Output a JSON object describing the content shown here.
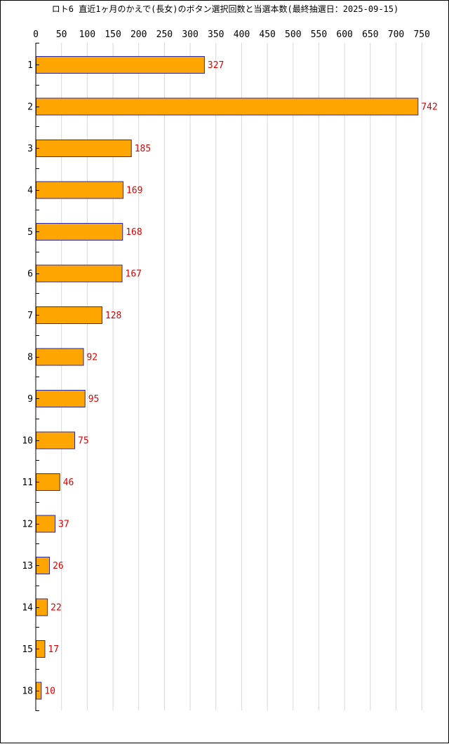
{
  "chart_data": {
    "type": "bar",
    "orientation": "horizontal",
    "title": "ロト6 直近1ヶ月のかえで(長女)のボタン選択回数と当選本数(最終抽選日：2025-09-15)",
    "categories": [
      "1",
      "2",
      "3",
      "4",
      "5",
      "6",
      "7",
      "8",
      "9",
      "10",
      "11",
      "12",
      "13",
      "14",
      "15",
      "18"
    ],
    "values": [
      327,
      742,
      185,
      169,
      168,
      167,
      128,
      92,
      95,
      75,
      46,
      37,
      26,
      22,
      17,
      10
    ],
    "xticks": [
      "0",
      "50",
      "100",
      "150",
      "200",
      "250",
      "300",
      "350",
      "400",
      "450",
      "500",
      "550",
      "600",
      "650",
      "700",
      "750"
    ],
    "xlim": [
      0,
      750
    ],
    "xlabel": "",
    "ylabel": "",
    "grid": true,
    "legend": "none",
    "colors": {
      "bar_fill": "#ffa500",
      "bar_stroke": "#2a2aa0",
      "value_label": "#e00000",
      "grid": "#d9d9d9",
      "axis": "#000000"
    }
  }
}
